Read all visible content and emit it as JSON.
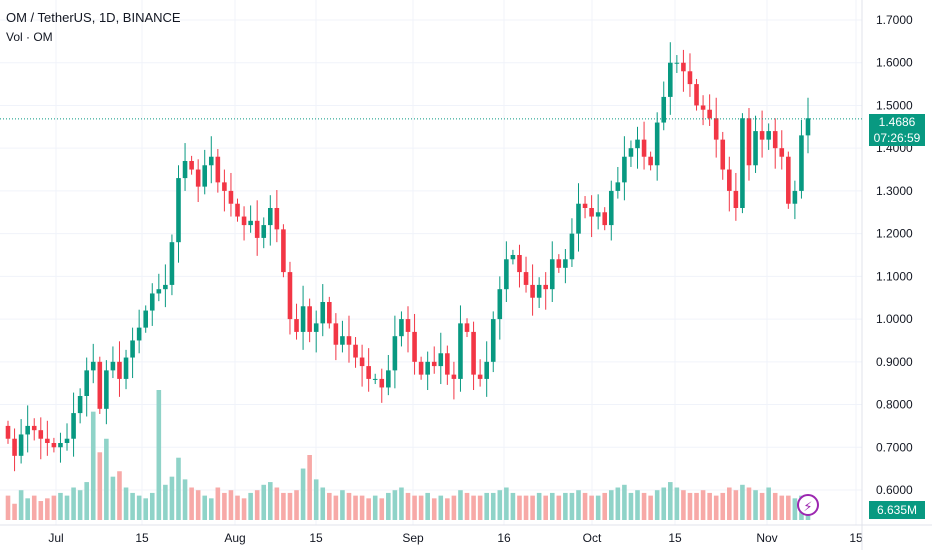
{
  "header": {
    "title": "OM / TetherUS, 1D, BINANCE",
    "volume_label": "Vol · OM"
  },
  "badges": {
    "last_price": "1.4686",
    "countdown": "07:26:59",
    "volume": "6.635M"
  },
  "colors": {
    "up": "#089981",
    "down": "#f23645",
    "vol_up": "#8fd3c8",
    "vol_down": "#f7a9a7",
    "grid": "#f0f3fa",
    "badge": "#089981",
    "price_line": "#089981"
  },
  "icons": {
    "alert": "lightning-icon"
  },
  "chart_data": {
    "type": "candlestick",
    "y_ticks": [
      "1.7000",
      "1.6000",
      "1.5000",
      "1.4000",
      "1.3000",
      "1.2000",
      "1.1000",
      "1.0000",
      "0.9000",
      "0.8000",
      "0.7000",
      "0.6000"
    ],
    "y_range": [
      0.6,
      1.7
    ],
    "x_ticks": [
      "Jul",
      "15",
      "Aug",
      "15",
      "Sep",
      "16",
      "Oct",
      "15",
      "Nov",
      "15"
    ],
    "last_price": 1.4686,
    "closes": [
      0.72,
      0.68,
      0.73,
      0.75,
      0.74,
      0.72,
      0.71,
      0.7,
      0.71,
      0.72,
      0.78,
      0.82,
      0.88,
      0.9,
      0.79,
      0.88,
      0.9,
      0.86,
      0.91,
      0.95,
      0.98,
      1.02,
      1.06,
      1.07,
      1.08,
      1.18,
      1.33,
      1.37,
      1.35,
      1.31,
      1.36,
      1.38,
      1.32,
      1.3,
      1.27,
      1.24,
      1.22,
      1.23,
      1.19,
      1.22,
      1.26,
      1.21,
      1.11,
      1.0,
      0.97,
      1.03,
      0.97,
      0.99,
      1.04,
      0.99,
      0.94,
      0.96,
      0.94,
      0.91,
      0.89,
      0.86,
      0.86,
      0.84,
      0.88,
      0.96,
      1.0,
      0.97,
      0.9,
      0.87,
      0.9,
      0.89,
      0.92,
      0.87,
      0.86,
      0.99,
      0.97,
      0.87,
      0.86,
      0.9,
      1.0,
      1.07,
      1.14,
      1.15,
      1.11,
      1.08,
      1.05,
      1.08,
      1.07,
      1.14,
      1.12,
      1.14,
      1.2,
      1.27,
      1.26,
      1.24,
      1.25,
      1.22,
      1.3,
      1.32,
      1.38,
      1.4,
      1.42,
      1.38,
      1.36,
      1.46,
      1.52,
      1.6,
      1.6,
      1.58,
      1.55,
      1.5,
      1.49,
      1.47,
      1.42,
      1.35,
      1.3,
      1.26,
      1.47,
      1.36,
      1.44,
      1.42,
      1.44,
      1.4,
      1.38,
      1.27,
      1.3,
      1.43,
      1.47
    ],
    "volumes": [
      0.9,
      0.6,
      1.1,
      0.8,
      0.9,
      0.7,
      0.8,
      0.9,
      1.0,
      0.9,
      1.2,
      1.1,
      1.4,
      4.0,
      2.5,
      3.0,
      1.6,
      1.8,
      1.2,
      1.0,
      0.9,
      0.8,
      1.0,
      4.8,
      1.3,
      1.6,
      2.3,
      1.5,
      1.2,
      1.1,
      0.9,
      0.8,
      1.2,
      1.0,
      1.1,
      0.9,
      0.8,
      1.0,
      1.1,
      1.3,
      1.4,
      1.2,
      1.0,
      1.0,
      1.1,
      1.9,
      2.4,
      1.5,
      1.2,
      1.0,
      0.9,
      1.1,
      1.0,
      0.9,
      0.9,
      0.8,
      0.9,
      0.8,
      1.0,
      1.1,
      1.2,
      1.0,
      0.9,
      0.9,
      1.0,
      0.8,
      0.9,
      0.8,
      0.9,
      1.1,
      1.0,
      0.9,
      0.9,
      1.0,
      1.0,
      1.1,
      1.2,
      1.0,
      0.9,
      0.9,
      0.9,
      1.0,
      0.9,
      1.0,
      0.9,
      1.0,
      1.0,
      1.1,
      1.0,
      0.9,
      0.9,
      1.0,
      1.1,
      1.2,
      1.3,
      1.0,
      1.1,
      1.0,
      0.9,
      1.1,
      1.2,
      1.4,
      1.2,
      1.1,
      1.0,
      1.0,
      1.1,
      1.0,
      0.9,
      1.0,
      1.2,
      1.1,
      1.3,
      1.2,
      1.1,
      1.0,
      1.2,
      1.0,
      0.9,
      0.9,
      0.8,
      0.9,
      0.7
    ]
  }
}
